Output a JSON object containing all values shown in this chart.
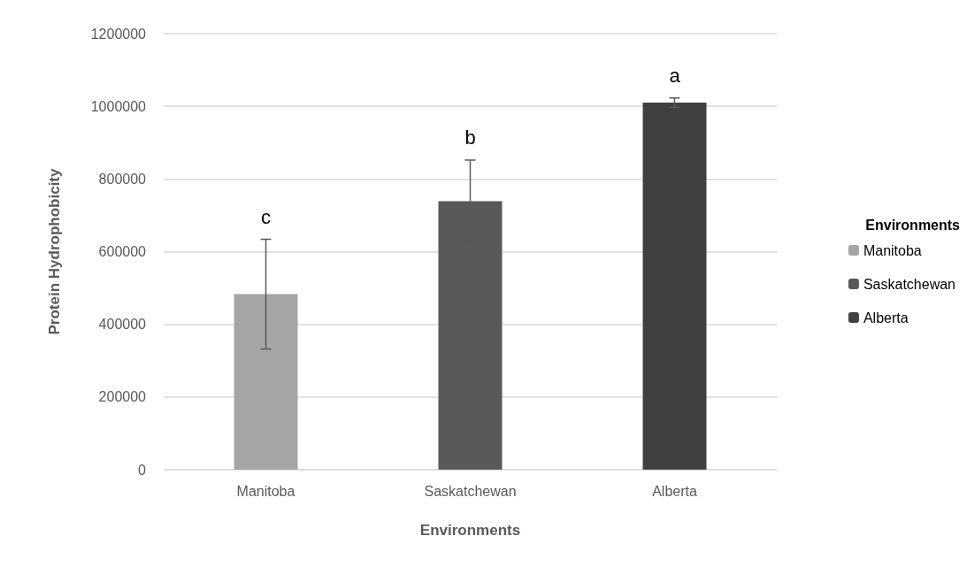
{
  "chart_data": {
    "type": "bar",
    "xlabel": "Environments",
    "ylabel": "Protein Hydrophobicity",
    "legend_title": "Environments",
    "categories": [
      "Manitoba",
      "Saskatchewan",
      "Alberta"
    ],
    "series": [
      {
        "name": "Manitoba",
        "color": "#a5a5a5",
        "values": [
          483000,
          null,
          null
        ],
        "errors": [
          151000,
          null,
          null
        ]
      },
      {
        "name": "Saskatchewan",
        "color": "#595959",
        "values": [
          null,
          739000,
          null
        ],
        "errors": [
          null,
          113000,
          null
        ]
      },
      {
        "name": "Alberta",
        "color": "#404040",
        "values": [
          null,
          null,
          1010000
        ],
        "errors": [
          null,
          null,
          13000
        ]
      }
    ],
    "ylim": [
      0,
      1200000
    ],
    "yticks": [
      0,
      200000,
      400000,
      600000,
      800000,
      1000000,
      1200000
    ],
    "grid": "y",
    "legend": "right",
    "annotations": [
      "c",
      "b",
      "a"
    ]
  }
}
